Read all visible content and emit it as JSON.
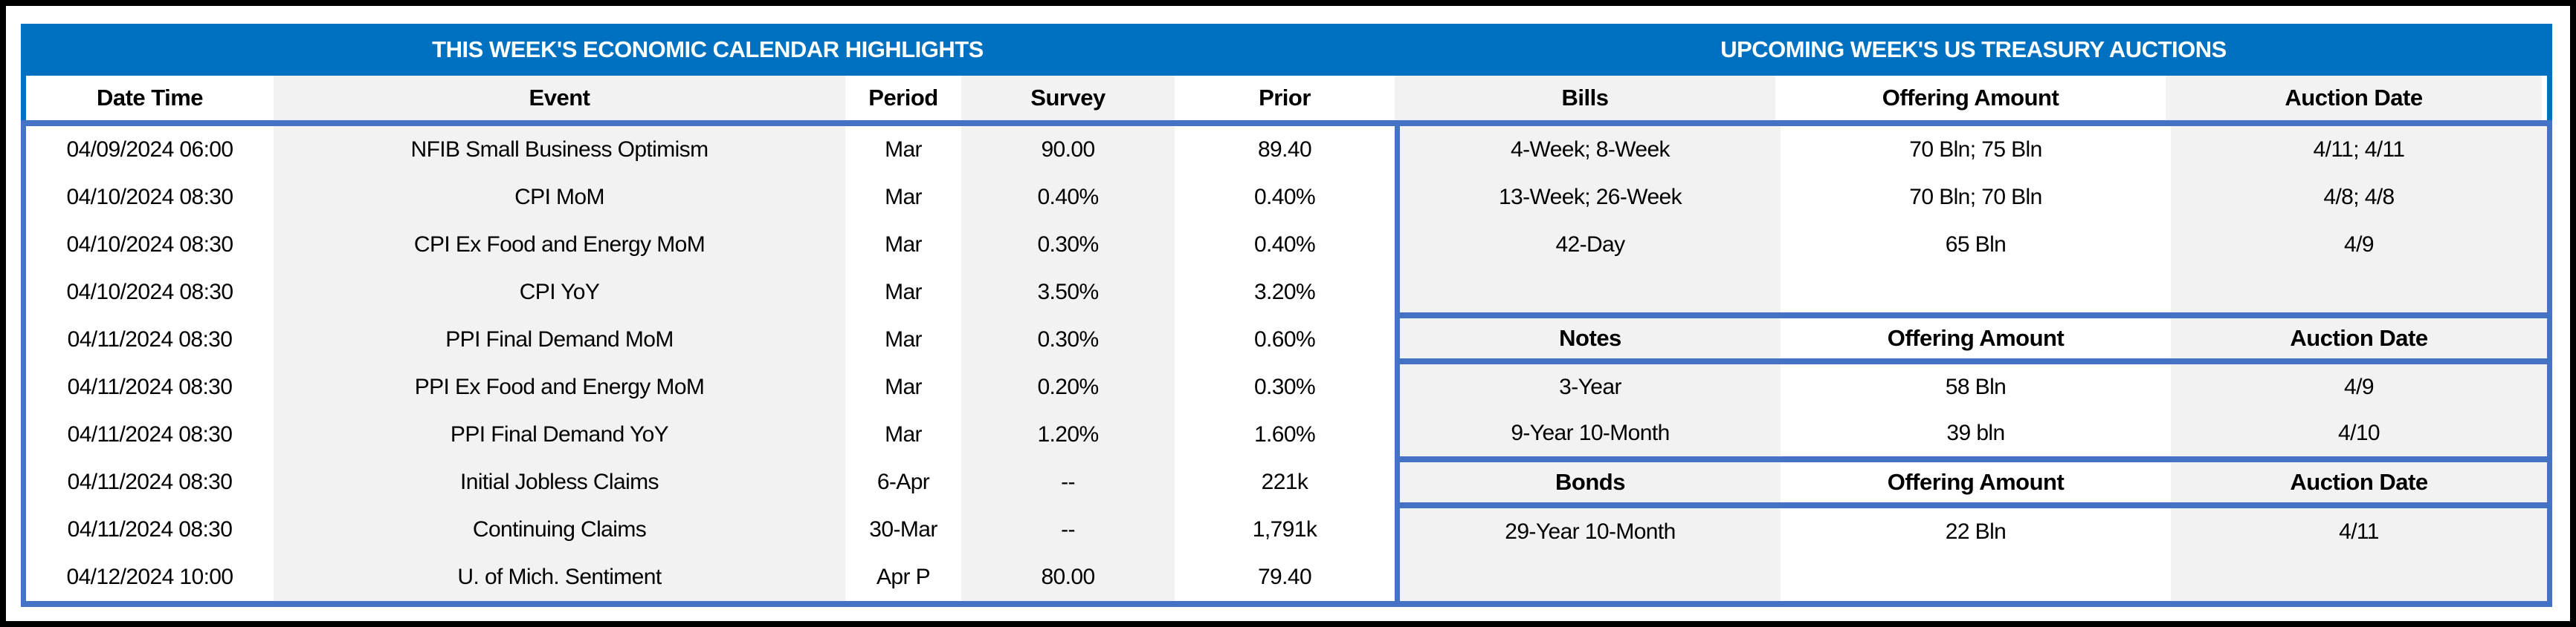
{
  "colors": {
    "band": "#0070C0",
    "border": "#4472C4",
    "shade": "#F2F2F2",
    "frame": "#000000"
  },
  "titles": {
    "left": "THIS WEEK'S ECONOMIC CALENDAR HIGHLIGHTS",
    "right": "UPCOMING WEEK'S US TREASURY AUCTIONS"
  },
  "header": [
    "Date Time",
    "Event",
    "Period",
    "Survey",
    "Prior",
    "Bills",
    "Offering Amount",
    "Auction Date"
  ],
  "calendar": {
    "rows": [
      {
        "date": "04/09/2024 06:00",
        "event": "NFIB Small Business Optimism",
        "period": "Mar",
        "survey": "90.00",
        "prior": "89.40"
      },
      {
        "date": "04/10/2024 08:30",
        "event": "CPI MoM",
        "period": "Mar",
        "survey": "0.40%",
        "prior": "0.40%"
      },
      {
        "date": "04/10/2024 08:30",
        "event": "CPI Ex Food and Energy MoM",
        "period": "Mar",
        "survey": "0.30%",
        "prior": "0.40%"
      },
      {
        "date": "04/10/2024 08:30",
        "event": "CPI YoY",
        "period": "Mar",
        "survey": "3.50%",
        "prior": "3.20%"
      },
      {
        "date": "04/11/2024 08:30",
        "event": "PPI Final Demand MoM",
        "period": "Mar",
        "survey": "0.30%",
        "prior": "0.60%"
      },
      {
        "date": "04/11/2024 08:30",
        "event": "PPI Ex Food and Energy MoM",
        "period": "Mar",
        "survey": "0.20%",
        "prior": "0.30%"
      },
      {
        "date": "04/11/2024 08:30",
        "event": "PPI Final Demand YoY",
        "period": "Mar",
        "survey": "1.20%",
        "prior": "1.60%"
      },
      {
        "date": "04/11/2024 08:30",
        "event": "Initial Jobless Claims",
        "period": "6-Apr",
        "survey": "--",
        "prior": "221k"
      },
      {
        "date": "04/11/2024 08:30",
        "event": "Continuing Claims",
        "period": "30-Mar",
        "survey": "--",
        "prior": "1,791k"
      },
      {
        "date": "04/12/2024 10:00",
        "event": "U. of Mich. Sentiment",
        "period": "Apr P",
        "survey": "80.00",
        "prior": "79.40"
      }
    ]
  },
  "auctions": {
    "bills": {
      "securities": [
        "4-Week; 8-Week",
        "13-Week; 26-Week",
        "42-Day"
      ],
      "amounts": [
        "70 Bln; 75 Bln",
        "70 Bln; 70 Bln",
        "65 Bln"
      ],
      "dates": [
        "4/11; 4/11",
        "4/8; 4/8",
        "4/9"
      ]
    },
    "notes": {
      "title": "Notes",
      "amount_label": "Offering Amount",
      "date_label": "Auction Date",
      "securities": [
        "3-Year",
        "9-Year 10-Month"
      ],
      "amounts": [
        "58 Bln",
        "39 bln"
      ],
      "dates": [
        "4/9",
        "4/10"
      ]
    },
    "bonds": {
      "title": "Bonds",
      "amount_label": "Offering Amount",
      "date_label": "Auction Date",
      "securities": [
        "29-Year 10-Month"
      ],
      "amounts": [
        "22 Bln"
      ],
      "dates": [
        "4/11"
      ]
    }
  }
}
